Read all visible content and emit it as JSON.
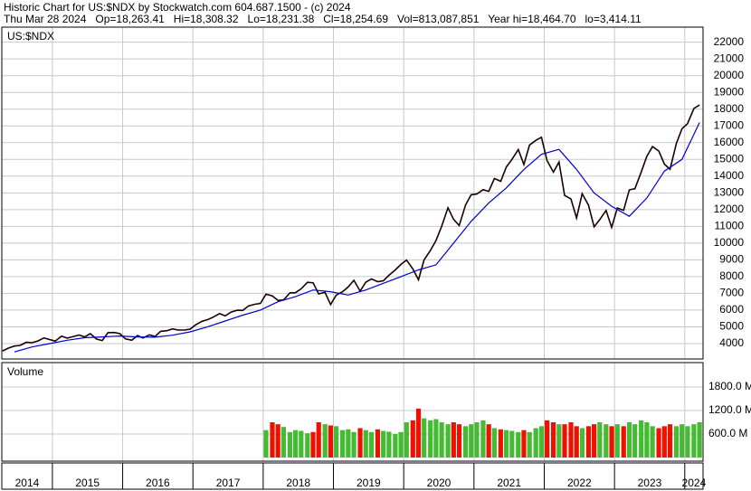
{
  "chart_data": [
    {
      "type": "line",
      "title": "Historic Chart for US:$NDX by Stockwatch.com 604.687.1500 - (c) 2024",
      "subtitle": "Thu Mar 28 2024   Op=18,263.41   Hi=18,308.32   Lo=18,231.38   Cl=18,254.69   Vol=813,087,851   Year hi=18,464.70   lo=3,414.11",
      "label": "US:$NDX",
      "xlim": [
        2014.28,
        2024.26
      ],
      "xticks": [
        2014,
        2015,
        2016,
        2017,
        2018,
        2019,
        2020,
        2021,
        2022,
        2023,
        2024
      ],
      "ylim": [
        3080,
        22900
      ],
      "yticks": [
        4000,
        5000,
        6000,
        7000,
        8000,
        9000,
        10000,
        11000,
        12000,
        13000,
        14000,
        15000,
        16000,
        17000,
        18000,
        19000,
        20000,
        21000,
        22000
      ],
      "grid": true,
      "series": [
        {
          "color": "#1a0000",
          "x": [
            2014.29,
            2014.38,
            2014.46,
            2014.54,
            2014.63,
            2014.71,
            2014.79,
            2014.88,
            2014.96,
            2015.04,
            2015.13,
            2015.21,
            2015.29,
            2015.38,
            2015.46,
            2015.54,
            2015.63,
            2015.71,
            2015.79,
            2015.88,
            2015.96,
            2016.04,
            2016.13,
            2016.21,
            2016.29,
            2016.38,
            2016.46,
            2016.54,
            2016.63,
            2016.71,
            2016.79,
            2016.88,
            2016.96,
            2017.04,
            2017.13,
            2017.21,
            2017.29,
            2017.38,
            2017.46,
            2017.54,
            2017.63,
            2017.71,
            2017.79,
            2017.88,
            2017.96,
            2018.04,
            2018.13,
            2018.21,
            2018.29,
            2018.38,
            2018.46,
            2018.54,
            2018.63,
            2018.71,
            2018.79,
            2018.88,
            2018.96,
            2019.04,
            2019.13,
            2019.21,
            2019.29,
            2019.38,
            2019.46,
            2019.54,
            2019.63,
            2019.71,
            2019.79,
            2019.88,
            2019.96,
            2020.04,
            2020.13,
            2020.21,
            2020.29,
            2020.38,
            2020.46,
            2020.54,
            2020.63,
            2020.71,
            2020.79,
            2020.88,
            2020.96,
            2021.04,
            2021.13,
            2021.21,
            2021.29,
            2021.38,
            2021.46,
            2021.54,
            2021.63,
            2021.71,
            2021.79,
            2021.88,
            2021.96,
            2022.04,
            2022.13,
            2022.21,
            2022.29,
            2022.38,
            2022.46,
            2022.54,
            2022.63,
            2022.71,
            2022.79,
            2022.88,
            2022.96,
            2023.04,
            2023.13,
            2023.21,
            2023.29,
            2023.38,
            2023.46,
            2023.54,
            2023.63,
            2023.71,
            2023.79,
            2023.88,
            2023.96,
            2024.04,
            2024.13,
            2024.21
          ],
          "values": [
            3560,
            3740,
            3850,
            3890,
            4080,
            4050,
            4150,
            4340,
            4240,
            4150,
            4440,
            4330,
            4410,
            4510,
            4400,
            4590,
            4270,
            4180,
            4650,
            4660,
            4590,
            4280,
            4200,
            4480,
            4340,
            4520,
            4420,
            4730,
            4770,
            4880,
            4810,
            4810,
            4860,
            5120,
            5330,
            5430,
            5580,
            5790,
            5650,
            5880,
            5990,
            5980,
            6250,
            6350,
            6400,
            6950,
            6850,
            6580,
            6600,
            7030,
            7040,
            7270,
            7660,
            7630,
            6970,
            7060,
            6330,
            6900,
            7100,
            7380,
            7780,
            7130,
            7670,
            7860,
            7700,
            7750,
            8080,
            8400,
            8730,
            8990,
            8460,
            7810,
            9000,
            9560,
            10160,
            11000,
            12110,
            11420,
            11050,
            12270,
            12890,
            12930,
            13190,
            13090,
            13860,
            13690,
            14550,
            15000,
            15590,
            14690,
            15850,
            16140,
            16320,
            14930,
            14240,
            14840,
            12850,
            12640,
            11500,
            12950,
            12270,
            10970,
            11400,
            11950,
            10940,
            12100,
            11960,
            13180,
            13250,
            14250,
            15180,
            15760,
            15500,
            14720,
            14410,
            15950,
            16830,
            17140,
            18040,
            18250
          ]
        },
        {
          "color": "#0000cc",
          "x": [
            2014.46,
            2014.71,
            2014.96,
            2015.21,
            2015.46,
            2015.71,
            2015.96,
            2016.21,
            2016.46,
            2016.71,
            2016.96,
            2017.21,
            2017.46,
            2017.71,
            2017.96,
            2018.21,
            2018.46,
            2018.71,
            2018.96,
            2019.21,
            2019.46,
            2019.71,
            2019.96,
            2020.21,
            2020.46,
            2020.71,
            2020.96,
            2021.21,
            2021.46,
            2021.71,
            2021.96,
            2022.21,
            2022.46,
            2022.71,
            2022.96,
            2023.21,
            2023.46,
            2023.71,
            2023.96,
            2024.21
          ],
          "values": [
            3500,
            3800,
            4000,
            4200,
            4350,
            4400,
            4450,
            4400,
            4380,
            4500,
            4700,
            5000,
            5350,
            5700,
            6000,
            6500,
            6800,
            7200,
            7100,
            6900,
            7200,
            7600,
            8000,
            8400,
            8700,
            10000,
            11300,
            12400,
            13300,
            14400,
            15300,
            15600,
            14400,
            13000,
            12200,
            11600,
            12700,
            14300,
            15000,
            17200
          ]
        }
      ]
    },
    {
      "type": "bar",
      "label": "Volume",
      "ylim": [
        0,
        2400
      ],
      "yticks": [
        {
          "value": 600,
          "label": "600.0 M"
        },
        {
          "value": 1200,
          "label": "1200.0 M"
        },
        {
          "value": 1800,
          "label": "1800.0 M"
        }
      ],
      "up_color": "#44bb33",
      "down_color": "#ee1100",
      "x": [
        2018.04,
        2018.13,
        2018.21,
        2018.29,
        2018.38,
        2018.46,
        2018.54,
        2018.63,
        2018.71,
        2018.79,
        2018.88,
        2018.96,
        2019.04,
        2019.13,
        2019.21,
        2019.29,
        2019.38,
        2019.46,
        2019.54,
        2019.63,
        2019.71,
        2019.79,
        2019.88,
        2019.96,
        2020.04,
        2020.13,
        2020.21,
        2020.29,
        2020.38,
        2020.46,
        2020.54,
        2020.63,
        2020.71,
        2020.79,
        2020.88,
        2020.96,
        2021.04,
        2021.13,
        2021.21,
        2021.29,
        2021.38,
        2021.46,
        2021.54,
        2021.63,
        2021.71,
        2021.79,
        2021.88,
        2021.96,
        2022.04,
        2022.13,
        2022.21,
        2022.29,
        2022.38,
        2022.46,
        2022.54,
        2022.63,
        2022.71,
        2022.79,
        2022.88,
        2022.96,
        2023.04,
        2023.13,
        2023.21,
        2023.29,
        2023.38,
        2023.46,
        2023.54,
        2023.63,
        2023.71,
        2023.79,
        2023.88,
        2023.96,
        2024.04,
        2024.13,
        2024.21
      ],
      "values": [
        700,
        900,
        850,
        780,
        650,
        700,
        680,
        620,
        650,
        900,
        850,
        820,
        800,
        700,
        720,
        650,
        750,
        700,
        650,
        720,
        680,
        660,
        600,
        650,
        900,
        950,
        1250,
        1000,
        950,
        980,
        900,
        850,
        900,
        850,
        800,
        850,
        900,
        950,
        850,
        750,
        720,
        700,
        680,
        650,
        700,
        650,
        750,
        800,
        950,
        900,
        850,
        850,
        900,
        800,
        750,
        800,
        850,
        900,
        850,
        800,
        850,
        800,
        900,
        850,
        950,
        900,
        800,
        750,
        800,
        850,
        800,
        850,
        800,
        850,
        900
      ]
    }
  ]
}
